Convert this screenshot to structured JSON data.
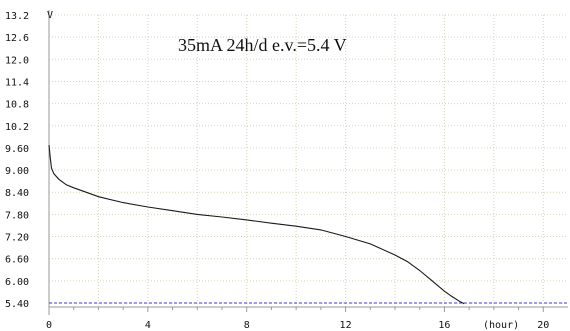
{
  "chart_data": {
    "type": "line",
    "title": "35mA 24h/d e.v.=5.4 V",
    "ylabel": "V",
    "xlabel": "(hour)",
    "xlim": [
      0,
      21
    ],
    "ylim": [
      5.2,
      13.2
    ],
    "xticks": [
      0,
      4,
      8,
      12,
      16,
      20
    ],
    "yticks": [
      13.2,
      12.6,
      12.0,
      11.4,
      10.8,
      10.2,
      9.6,
      9.0,
      8.4,
      7.8,
      7.2,
      6.6,
      6.0,
      5.4
    ],
    "ytick_labels": [
      "13.2",
      "12.6",
      "12.0",
      "11.4",
      "10.8",
      "10.2",
      "9.60",
      "9.00",
      "8.40",
      "7.80",
      "7.20",
      "6.60",
      "6.00",
      "5.40"
    ],
    "grid": true,
    "series": [
      {
        "color": "#1a1a1a",
        "x": [
          0,
          0.05,
          0.1,
          0.2,
          0.4,
          0.7,
          1,
          1.5,
          2,
          3,
          4,
          5,
          6,
          7,
          8,
          9,
          10,
          11,
          12,
          13,
          14,
          14.5,
          15,
          15.5,
          16,
          16.3,
          16.6,
          16.8
        ],
        "y": [
          9.68,
          9.35,
          9.05,
          8.9,
          8.75,
          8.6,
          8.52,
          8.4,
          8.28,
          8.12,
          8.0,
          7.9,
          7.8,
          7.73,
          7.65,
          7.56,
          7.48,
          7.38,
          7.2,
          7.0,
          6.7,
          6.52,
          6.28,
          6.0,
          5.72,
          5.58,
          5.45,
          5.38
        ]
      }
    ],
    "reference_lines": [
      {
        "axis": "y",
        "value": 5.4,
        "color": "#3a3ad0",
        "style": "dashed"
      }
    ]
  }
}
